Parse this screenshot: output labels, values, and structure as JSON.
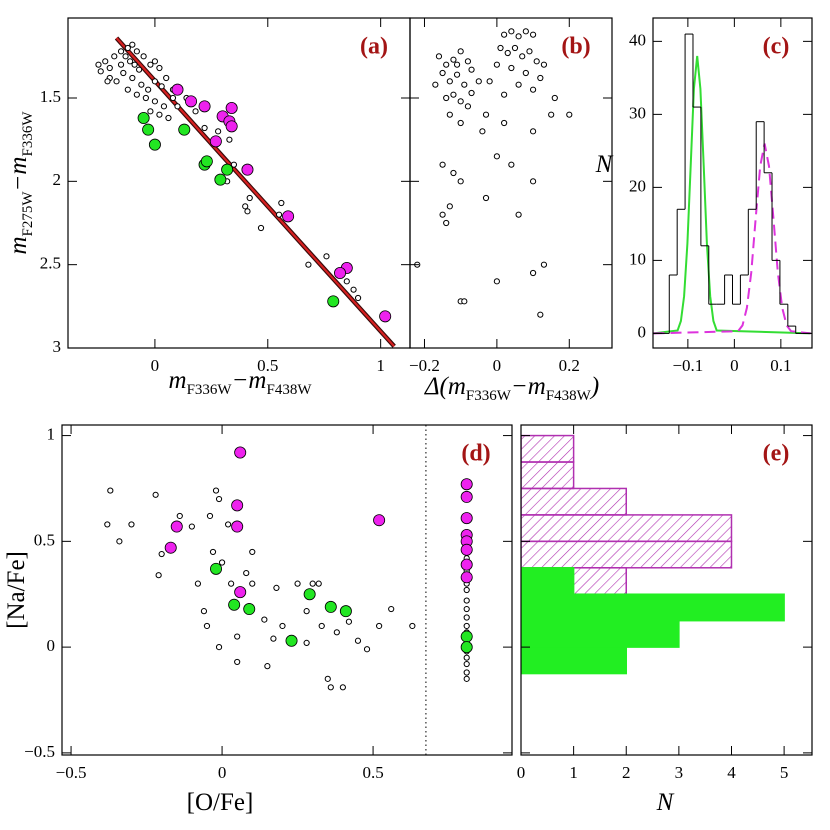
{
  "chart_data": [
    {
      "type": "scatter",
      "label": "(a)",
      "xlabel": [
        "m",
        "F336W",
        "−m",
        "F438W"
      ],
      "ylabel": [
        "m",
        "F275W",
        "−m",
        "F336W"
      ],
      "xlim": [
        -0.385,
        1.13
      ],
      "ylim": [
        3,
        1.02
      ],
      "xticks": [
        0,
        0.5,
        1
      ],
      "yticks": [
        1.5,
        2,
        2.5,
        3
      ],
      "lines": [
        {
          "color": "#d62020",
          "x": [
            -0.17,
            0.3,
            0.7,
            1.06
          ],
          "values": [
            1.14,
            1.85,
            2.45,
            2.99
          ]
        }
      ],
      "series": [
        {
          "color": "#000000",
          "marker": "open",
          "x": [
            -0.25,
            -0.22,
            -0.2,
            -0.18,
            -0.15,
            -0.12,
            -0.1,
            -0.08,
            -0.05,
            -0.02,
            0,
            0.02,
            -0.14,
            -0.1,
            -0.06,
            -0.03,
            0,
            0.03,
            -0.2,
            -0.17,
            -0.12,
            -0.08,
            -0.04,
            0,
            0.04,
            -0.15,
            -0.11,
            -0.07,
            -0.13,
            -0.09,
            0.05,
            0.08,
            0.02,
            0.06,
            -0.02,
            0.1,
            0.14,
            0.18,
            0.22,
            0.28,
            0.33,
            0.35,
            0.32,
            0.42,
            0.4,
            0.41,
            0.47,
            0.55,
            0.56,
            0.68,
            0.76,
            0.85,
            0.88,
            0.9,
            0.08,
            0.33,
            -0.24,
            -0.21,
            0.12
          ],
          "values": [
            1.3,
            1.28,
            1.32,
            1.25,
            1.22,
            1.2,
            1.18,
            1.22,
            1.25,
            1.3,
            1.28,
            1.32,
            1.35,
            1.38,
            1.42,
            1.45,
            1.4,
            1.43,
            1.38,
            1.4,
            1.45,
            1.48,
            1.5,
            1.52,
            1.55,
            1.3,
            1.28,
            1.33,
            1.25,
            1.3,
            1.38,
            1.45,
            1.6,
            1.62,
            1.58,
            1.55,
            1.5,
            1.58,
            1.68,
            1.7,
            1.75,
            1.9,
            2.0,
            2.1,
            2.15,
            2.18,
            2.28,
            2.2,
            2.13,
            2.5,
            2.45,
            2.6,
            2.65,
            2.7,
            1.5,
            1.67,
            1.34,
            1.4,
            1.7
          ]
        },
        {
          "color": "#ee22ee",
          "marker": "filled",
          "x": [
            0.1,
            0.16,
            0.22,
            0.34,
            0.3,
            0.33,
            0.34,
            0.27,
            0.41,
            0.59,
            0.85,
            0.82,
            1.02
          ],
          "values": [
            1.45,
            1.52,
            1.55,
            1.56,
            1.61,
            1.64,
            1.67,
            1.76,
            1.93,
            2.21,
            2.52,
            2.55,
            2.81
          ]
        },
        {
          "color": "#22e622",
          "marker": "filled",
          "x": [
            -0.05,
            -0.03,
            0.13,
            0,
            0.22,
            0.23,
            0.29,
            0.32,
            0.79
          ],
          "values": [
            1.62,
            1.69,
            1.69,
            1.78,
            1.9,
            1.88,
            1.99,
            1.93,
            2.72
          ]
        }
      ]
    },
    {
      "type": "scatter",
      "label": "(b)",
      "xlabel": [
        "Δ(m",
        "F336W",
        "−m",
        "F438W",
        ")"
      ],
      "xlim": [
        -0.24,
        0.318
      ],
      "ylim": [
        3,
        1.02
      ],
      "xticks": [
        -0.2,
        0,
        0.2
      ],
      "yticks": [
        1.5,
        2,
        2.5,
        3
      ],
      "ytick_labels": false,
      "series": [
        {
          "color": "#000000",
          "marker": "open",
          "x": [
            -0.16,
            -0.14,
            -0.12,
            -0.1,
            -0.08,
            -0.15,
            -0.13,
            -0.11,
            -0.09,
            -0.07,
            -0.12,
            -0.1,
            -0.08,
            -0.13,
            -0.1,
            -0.07,
            -0.05,
            -0.17,
            -0.14,
            -0.11,
            0.02,
            0.04,
            0.06,
            0.08,
            0.1,
            0.01,
            0.03,
            0.05,
            0.07,
            0.09,
            0.11,
            0,
            0.04,
            0.08,
            0.12,
            0.06,
            0.1,
            0.02,
            -0.02,
            0.13,
            0.16,
            0.15,
            0.1,
            0.02,
            -0.03,
            0,
            -0.15,
            -0.12,
            -0.1,
            -0.13,
            -0.15,
            -0.14,
            0.04,
            -0.03,
            0.1,
            0.06,
            -0.22,
            0,
            0.1,
            0.13,
            0.12,
            -0.1,
            -0.09,
            -0.04,
            0.2
          ],
          "values": [
            1.25,
            1.3,
            1.27,
            1.22,
            1.28,
            1.35,
            1.4,
            1.36,
            1.42,
            1.33,
            1.48,
            1.52,
            1.55,
            1.6,
            1.65,
            1.47,
            1.4,
            1.42,
            1.5,
            1.3,
            1.12,
            1.1,
            1.13,
            1.1,
            1.12,
            1.2,
            1.23,
            1.2,
            1.25,
            1.22,
            1.28,
            1.3,
            1.32,
            1.35,
            1.38,
            1.42,
            1.45,
            1.48,
            1.4,
            1.3,
            1.5,
            1.6,
            1.7,
            1.65,
            1.6,
            1.85,
            1.9,
            1.95,
            2.0,
            2.15,
            2.2,
            2.25,
            1.9,
            2.1,
            2.0,
            2.2,
            2.5,
            2.6,
            2.55,
            2.5,
            2.8,
            2.72,
            2.72,
            1.7,
            1.6
          ]
        }
      ]
    },
    {
      "type": "histogram",
      "label": "(c)",
      "ylabel": "N",
      "xlim": [
        -0.175,
        0.167
      ],
      "ylim": [
        -2,
        43.2
      ],
      "xticks": [
        -0.1,
        0,
        0.1
      ],
      "yticks": [
        0,
        10,
        20,
        30,
        40
      ],
      "color": "#000000",
      "bins": [
        -0.174,
        -0.157,
        -0.14,
        -0.123,
        -0.106,
        -0.089,
        -0.072,
        -0.055,
        -0.038,
        -0.021,
        -0.004,
        0.013,
        0.03,
        0.047,
        0.064,
        0.081,
        0.098,
        0.115,
        0.132,
        0.149,
        0.166
      ],
      "counts": [
        0,
        0,
        8,
        17,
        41,
        31,
        12,
        4,
        4,
        8,
        4,
        8,
        17,
        29,
        22,
        10,
        4,
        1,
        0,
        0
      ],
      "lines": [
        {
          "color": "#33dd33",
          "x": [
            -0.174,
            -0.122,
            -0.115,
            -0.108,
            -0.101,
            -0.094,
            -0.087,
            -0.08,
            -0.073,
            -0.066,
            -0.059,
            -0.052,
            -0.045,
            -0.038,
            0.164
          ],
          "values": [
            0,
            0.4,
            1.7,
            5.1,
            12.3,
            23,
            33.5,
            38,
            33.5,
            23,
            12.3,
            5.1,
            1.7,
            0.4,
            0
          ]
        },
        {
          "color": "#dd33dd",
          "dash": true,
          "x": [
            -0.174,
            0.008,
            0.0175,
            0.027,
            0.0365,
            0.046,
            0.0555,
            0.065,
            0.0745,
            0.084,
            0.0935,
            0.103,
            0.1125,
            0.122,
            0.164
          ],
          "values": [
            0,
            0.3,
            1.1,
            3.5,
            8.4,
            15.8,
            22.9,
            26,
            22.9,
            15.8,
            8.4,
            3.5,
            1.1,
            0.3,
            0
          ]
        }
      ]
    },
    {
      "type": "scatter",
      "label": "(d)",
      "xlabel": "[O/Fe]",
      "ylabel": "[Na/Fe]",
      "xlim": [
        -0.53,
        0.96
      ],
      "ylim": [
        -0.51,
        1.05
      ],
      "xticks": [
        -0.5,
        0,
        0.5
      ],
      "yticks": [
        -0.5,
        0,
        0.5,
        1
      ],
      "vline": 0.675,
      "series": [
        {
          "color": "#000000",
          "marker": "open",
          "x": [
            -0.37,
            -0.38,
            -0.34,
            -0.3,
            -0.22,
            -0.2,
            -0.21,
            -0.14,
            -0.1,
            -0.08,
            -0.06,
            -0.02,
            -0.01,
            -0.04,
            0.02,
            -0.03,
            0,
            0.03,
            -0.05,
            0.05,
            0.05,
            0.1,
            0.08,
            0.1,
            0.14,
            0.15,
            0.18,
            0.17,
            0.2,
            0.25,
            0.28,
            0.3,
            0.32,
            0.33,
            0.28,
            0.35,
            0.36,
            0.4,
            0.38,
            0.42,
            0.45,
            0.48,
            0.52,
            0.56,
            0.63,
            -0.01,
            0.81,
            0.81,
            0.81,
            0.81,
            0.81,
            0.81,
            0.81,
            0.81,
            0.81,
            0.81,
            0.81,
            0.81,
            0.81,
            0.81,
            0.81,
            0.81
          ],
          "values": [
            0.74,
            0.58,
            0.5,
            0.58,
            0.72,
            0.44,
            0.34,
            0.62,
            0.57,
            0.3,
            0.17,
            0.74,
            0.7,
            0.62,
            0.58,
            0.45,
            0.4,
            0.3,
            0.1,
            0.05,
            -0.07,
            0.45,
            0.35,
            0.3,
            0.13,
            -0.09,
            0.28,
            0.04,
            0.1,
            0.3,
            0.17,
            0.3,
            0.3,
            0.1,
            0.02,
            -0.15,
            -0.19,
            -0.19,
            0.07,
            0.12,
            0.03,
            -0.01,
            0.1,
            0.18,
            0.1,
            0.0,
            0.47,
            0.42,
            0.36,
            0.3,
            0.27,
            0.22,
            0.18,
            0.14,
            0.1,
            0.07,
            0.03,
            -0.02,
            -0.05,
            -0.08,
            -0.12,
            -0.15
          ]
        },
        {
          "color": "#ee22ee",
          "marker": "filled",
          "x": [
            0.06,
            -0.15,
            -0.17,
            0.05,
            0.05,
            0.06,
            0.52,
            0.81,
            0.81,
            0.81,
            0.81,
            0.81,
            0.81,
            0.81,
            0.81
          ],
          "values": [
            0.92,
            0.57,
            0.47,
            0.67,
            0.57,
            0.26,
            0.6,
            0.77,
            0.71,
            0.61,
            0.53,
            0.5,
            0.46,
            0.39,
            0.33
          ]
        },
        {
          "color": "#22e622",
          "marker": "filled",
          "x": [
            -0.02,
            0.04,
            0.09,
            0.23,
            0.29,
            0.36,
            0.41,
            0.81,
            0.81
          ],
          "values": [
            0.37,
            0.2,
            0.18,
            0.03,
            0.25,
            0.19,
            0.17,
            0.05,
            0
          ]
        }
      ]
    },
    {
      "type": "histogram",
      "orientation": "horizontal",
      "label": "(e)",
      "xlabel": "N",
      "xlim": [
        0,
        5.53
      ],
      "ylim": [
        -0.51,
        1.05
      ],
      "xticks": [
        0,
        1,
        2,
        3,
        4,
        5
      ],
      "yticks": [
        -0.5,
        0,
        0.5,
        1
      ],
      "ytick_labels": false,
      "series": [
        {
          "color": "#b030b0",
          "hatch": true,
          "bins": [
            0.25,
            0.375,
            0.5,
            0.625,
            0.75,
            0.875,
            1.0
          ],
          "counts": [
            2,
            4,
            4,
            2,
            1,
            1
          ]
        },
        {
          "color": "#22ee22",
          "bins": [
            -0.125,
            0,
            0.125,
            0.25,
            0.375
          ],
          "counts": [
            2,
            3,
            5,
            1
          ]
        }
      ]
    }
  ]
}
